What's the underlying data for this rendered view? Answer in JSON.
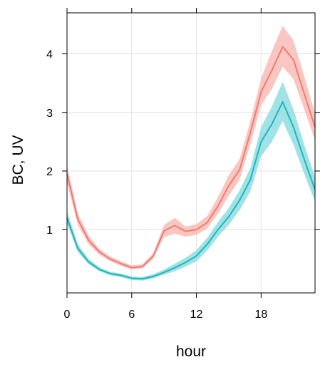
{
  "chart_data": {
    "type": "line",
    "xlabel": "hour",
    "ylabel": "BC, UV",
    "xlim": [
      0,
      23
    ],
    "ylim": [
      -0.08,
      4.7
    ],
    "xticks": [
      0,
      6,
      12,
      18
    ],
    "yticks": [
      1,
      2,
      3,
      4
    ],
    "grid": true,
    "x": [
      0,
      1,
      2,
      3,
      4,
      5,
      6,
      7,
      8,
      9,
      10,
      11,
      12,
      13,
      14,
      15,
      16,
      17,
      18,
      19,
      20,
      21,
      22,
      23
    ],
    "series": [
      {
        "color": "#f07b72",
        "band_color": "#f9bcb6",
        "values": [
          1.95,
          1.18,
          0.82,
          0.62,
          0.5,
          0.42,
          0.35,
          0.37,
          0.55,
          0.98,
          1.07,
          0.97,
          1.0,
          1.12,
          1.4,
          1.75,
          2.02,
          2.65,
          3.35,
          3.72,
          4.12,
          3.9,
          3.32,
          2.75
        ],
        "lower": [
          1.8,
          1.08,
          0.75,
          0.57,
          0.46,
          0.38,
          0.32,
          0.34,
          0.5,
          0.87,
          0.93,
          0.88,
          0.91,
          1.02,
          1.27,
          1.58,
          1.85,
          2.45,
          3.12,
          3.4,
          3.78,
          3.57,
          3.05,
          2.52
        ],
        "upper": [
          2.1,
          1.28,
          0.9,
          0.67,
          0.54,
          0.46,
          0.39,
          0.41,
          0.6,
          1.08,
          1.2,
          1.05,
          1.09,
          1.23,
          1.55,
          1.93,
          2.2,
          2.85,
          3.58,
          4.05,
          4.48,
          4.23,
          3.62,
          2.98
        ]
      },
      {
        "color": "#1db6bd",
        "band_color": "#8fdde0",
        "values": [
          1.2,
          0.68,
          0.45,
          0.32,
          0.25,
          0.22,
          0.17,
          0.16,
          0.2,
          0.27,
          0.35,
          0.44,
          0.55,
          0.75,
          1.0,
          1.22,
          1.5,
          1.85,
          2.5,
          2.8,
          3.18,
          2.75,
          2.2,
          1.68
        ],
        "lower": [
          1.1,
          0.62,
          0.41,
          0.29,
          0.22,
          0.19,
          0.14,
          0.13,
          0.17,
          0.23,
          0.29,
          0.37,
          0.46,
          0.64,
          0.88,
          1.08,
          1.33,
          1.65,
          2.25,
          2.5,
          2.85,
          2.45,
          1.95,
          1.48
        ],
        "upper": [
          1.32,
          0.75,
          0.5,
          0.36,
          0.28,
          0.25,
          0.2,
          0.19,
          0.24,
          0.32,
          0.42,
          0.52,
          0.65,
          0.86,
          1.13,
          1.37,
          1.67,
          2.05,
          2.75,
          3.1,
          3.52,
          3.05,
          2.45,
          1.9
        ]
      }
    ]
  }
}
